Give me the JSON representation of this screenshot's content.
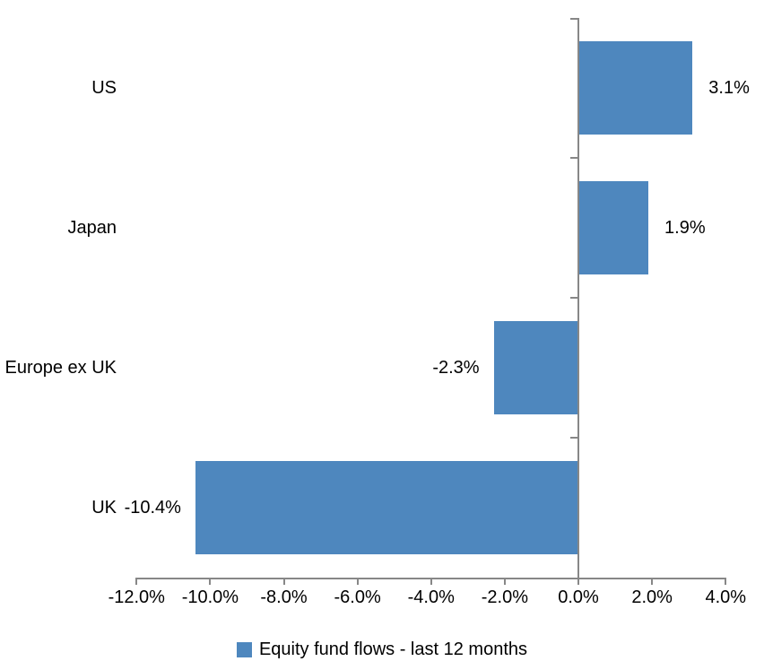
{
  "chart_data": {
    "type": "bar",
    "orientation": "horizontal",
    "title": "",
    "categories": [
      "US",
      "Japan",
      "Europe ex UK",
      "UK"
    ],
    "values": [
      3.1,
      1.9,
      -2.3,
      -10.4
    ],
    "data_labels": [
      "3.1%",
      "1.9%",
      "-2.3%",
      "-10.4%"
    ],
    "series": [
      {
        "name": "Equity fund flows - last 12 months",
        "values": [
          3.1,
          1.9,
          -2.3,
          -10.4
        ]
      }
    ],
    "x_axis": {
      "min": -12,
      "max": 4,
      "step": 2,
      "tick_labels": [
        "-12.0%",
        "-10.0%",
        "-8.0%",
        "-6.0%",
        "-4.0%",
        "-2.0%",
        "0.0%",
        "2.0%",
        "4.0%"
      ]
    },
    "y_axis": {
      "label": "",
      "zero_line_at": "0.0%"
    },
    "legend": {
      "position": "bottom",
      "label": "Equity fund flows - last 12 months"
    },
    "grid": false,
    "colors": {
      "bar": "#4E87BE",
      "axis": "#878787",
      "text": "#000000",
      "background": "#FFFFFF"
    }
  }
}
